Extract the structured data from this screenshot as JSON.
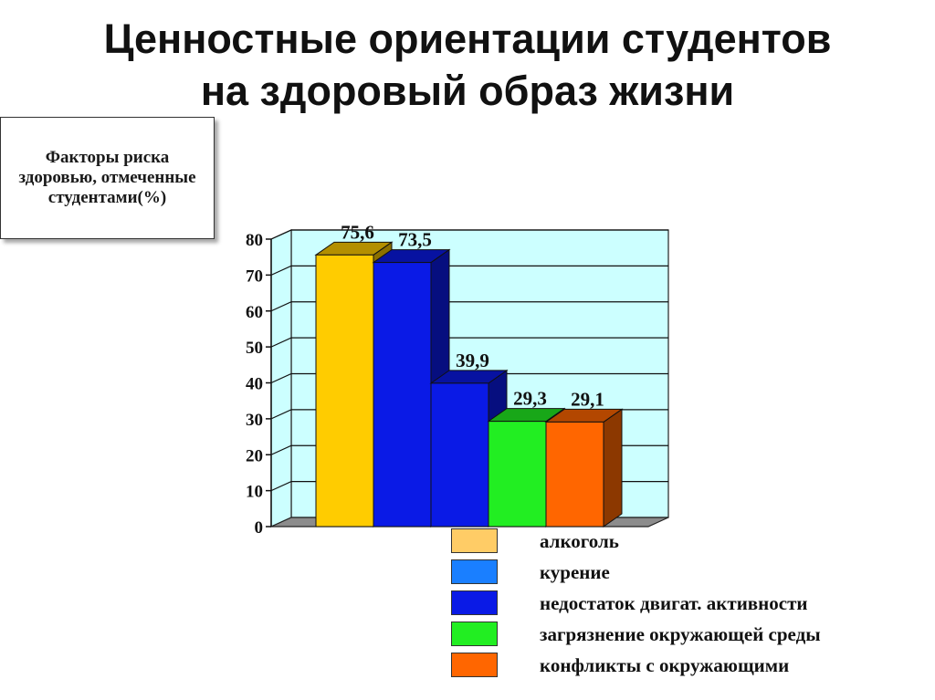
{
  "title": {
    "line1": "Ценностные ориентации студентов",
    "line2": "на здоровый образ жизни"
  },
  "caption": "Факторы риска здоровью, отмеченные студентами(%)",
  "chart_data": {
    "type": "bar",
    "categories": [
      "алкоголь",
      "курение",
      "недостаток двигат. активности",
      "загрязнение окружающей среды",
      "конфликты с окружающими"
    ],
    "values": [
      75.6,
      73.5,
      39.9,
      29.3,
      29.1
    ],
    "value_labels": [
      "75,6",
      "73,5",
      "39,9",
      "29,3",
      "29,1"
    ],
    "colors": [
      "#ffcc00",
      "#0a1ae6",
      "#0a1ae6",
      "#22ee22",
      "#ff6600"
    ],
    "legend_colors": [
      "#ffcc66",
      "#1a7fff",
      "#0a1ae6",
      "#22ee22",
      "#ff6600"
    ],
    "ylim": [
      0,
      80
    ],
    "yticks": [
      0,
      10,
      20,
      30,
      40,
      50,
      60,
      70,
      80
    ],
    "grid": true,
    "plot_background": "#ccffff",
    "floor_color": "#8c8c8c",
    "legend_position": "bottom-right",
    "title": "",
    "xlabel": "",
    "ylabel": ""
  }
}
